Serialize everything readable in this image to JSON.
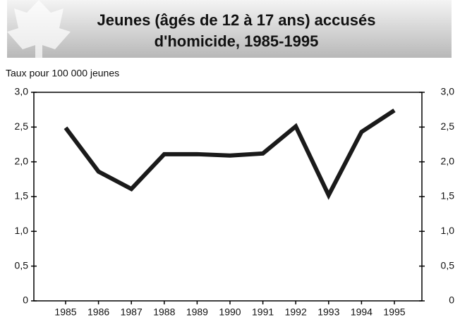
{
  "chart_data": {
    "type": "line",
    "title": [
      "Jeunes (âgés de 12 à 17 ans) accusés",
      "d'homicide, 1985-1995"
    ],
    "y_label": "Taux pour 100 000 jeunes",
    "categories": [
      "1985",
      "1986",
      "1987",
      "1988",
      "1989",
      "1990",
      "1991",
      "1992",
      "1993",
      "1994",
      "1995"
    ],
    "series": [
      {
        "color": "#1a1a1a",
        "values": [
          2.49,
          1.86,
          1.61,
          2.11,
          2.11,
          2.09,
          2.12,
          2.51,
          1.52,
          2.43,
          2.74
        ]
      }
    ],
    "ylim": [
      0,
      3
    ],
    "yticks": [
      0,
      {
        "value": 0.5,
        "label": "0,5"
      },
      {
        "value": 1,
        "label": "1,0"
      },
      {
        "value": 1.5,
        "label": "1,5"
      },
      {
        "value": 2,
        "label": "2,0"
      },
      {
        "value": 2.5,
        "label": "2,5"
      },
      {
        "value": 3,
        "label": "3,0"
      }
    ],
    "y2lim": [
      0,
      3
    ],
    "y2ticks": [
      0,
      {
        "value": 0.5,
        "label": "0,5"
      },
      {
        "value": 1,
        "label": "1,0"
      },
      {
        "value": 1.5,
        "label": "1,5"
      },
      {
        "value": 2,
        "label": "2,0"
      },
      {
        "value": 2.5,
        "label": "2,5"
      },
      {
        "value": 3,
        "label": "3,0"
      }
    ]
  }
}
